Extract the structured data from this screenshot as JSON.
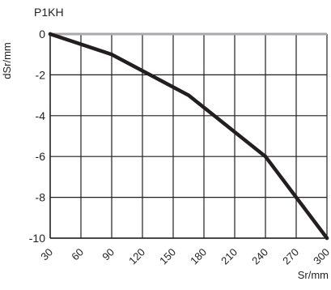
{
  "chart_data": {
    "type": "line",
    "title": "P1KH",
    "xlabel": "Sr/mm",
    "ylabel": "dSr/mm",
    "xlim": [
      30,
      300
    ],
    "ylim": [
      -10,
      0
    ],
    "grid": true,
    "x_ticks": [
      "30",
      "60",
      "90",
      "120",
      "150",
      "180",
      "210",
      "240",
      "270",
      "300"
    ],
    "y_ticks": [
      "0",
      "-2",
      "-4",
      "-6",
      "-8",
      "-10"
    ],
    "series": [
      {
        "x": [
          30,
          90,
          165,
          240,
          300
        ],
        "y": [
          0,
          -1,
          -3,
          -6,
          -10
        ],
        "color": "#231f20"
      }
    ],
    "zero_line_color": "#a7a9ac"
  }
}
